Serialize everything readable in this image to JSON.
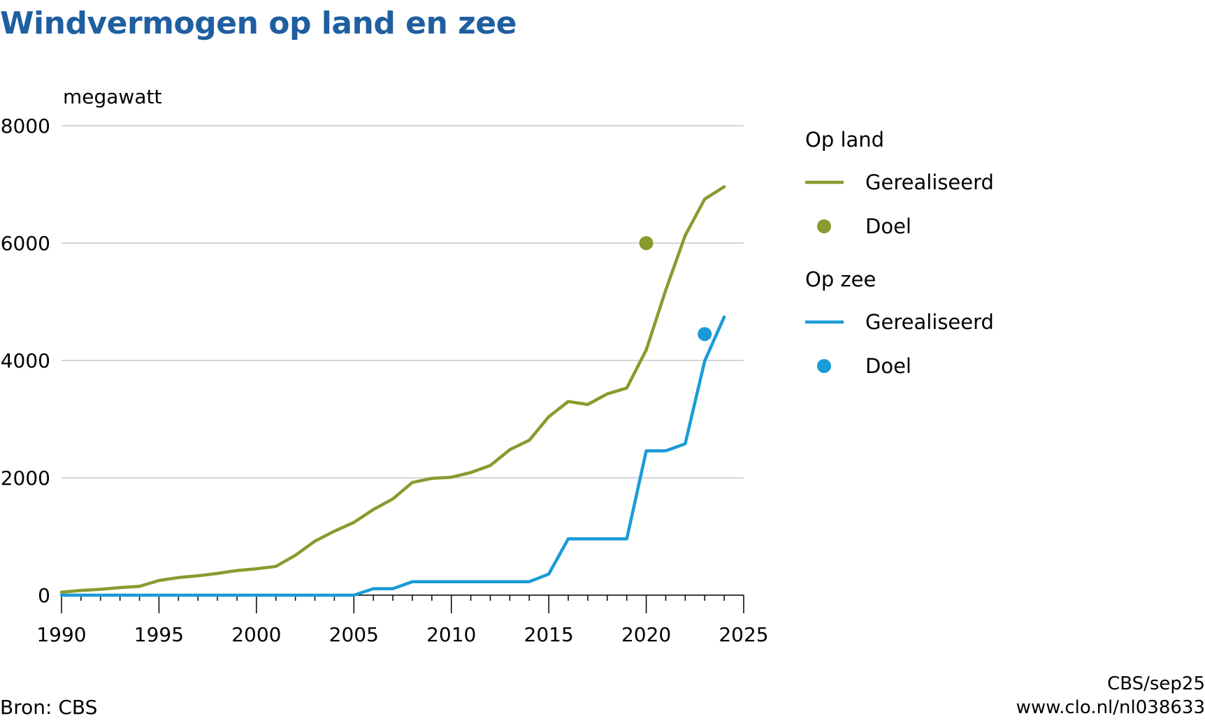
{
  "title": "Windvermogen op land en zee",
  "source": "Bron: CBS",
  "credit": "CBS/sep25",
  "url": "www.clo.nl/nl038633",
  "colors": {
    "land": "#8a9a2e",
    "sea": "#1a9bd7",
    "title": "#1f5fa0",
    "grid": "#c8c8c8"
  },
  "chart_data": {
    "type": "line",
    "ylabel": "megawatt",
    "xlim": [
      1990,
      2025
    ],
    "ylim": [
      0,
      8000
    ],
    "xticks": [
      1990,
      1995,
      2000,
      2005,
      2010,
      2015,
      2020,
      2025
    ],
    "yticks": [
      0,
      2000,
      4000,
      6000,
      8000
    ],
    "grid": true,
    "legend_position": "right",
    "legend": [
      {
        "group": "Op land",
        "items": [
          {
            "label": "Gerealiseerd",
            "kind": "line",
            "color": "#8a9a2e"
          },
          {
            "label": "Doel",
            "kind": "dot",
            "color": "#8a9a2e"
          }
        ]
      },
      {
        "group": "Op zee",
        "items": [
          {
            "label": "Gerealiseerd",
            "kind": "line",
            "color": "#1a9bd7"
          },
          {
            "label": "Doel",
            "kind": "dot",
            "color": "#1a9bd7"
          }
        ]
      }
    ],
    "series": [
      {
        "name": "Op land - Gerealiseerd",
        "color": "#8a9a2e",
        "x": [
          1990,
          1991,
          1992,
          1993,
          1994,
          1995,
          1996,
          1997,
          1998,
          1999,
          2000,
          2001,
          2002,
          2003,
          2004,
          2005,
          2006,
          2007,
          2008,
          2009,
          2010,
          2011,
          2012,
          2013,
          2014,
          2015,
          2016,
          2017,
          2018,
          2019,
          2020,
          2021,
          2022,
          2023,
          2024
        ],
        "y": [
          50,
          80,
          100,
          130,
          150,
          250,
          300,
          330,
          370,
          420,
          450,
          490,
          680,
          920,
          1090,
          1240,
          1460,
          1640,
          1920,
          1990,
          2010,
          2090,
          2210,
          2480,
          2640,
          3040,
          3300,
          3250,
          3430,
          3530,
          4180,
          5200,
          6130,
          6750,
          6960
        ]
      },
      {
        "name": "Op zee - Gerealiseerd",
        "color": "#1a9bd7",
        "x": [
          1990,
          1991,
          1992,
          1993,
          1994,
          1995,
          1996,
          1997,
          1998,
          1999,
          2000,
          2001,
          2002,
          2003,
          2004,
          2005,
          2006,
          2007,
          2008,
          2009,
          2010,
          2011,
          2012,
          2013,
          2014,
          2015,
          2016,
          2017,
          2018,
          2019,
          2020,
          2021,
          2022,
          2023,
          2024
        ],
        "y": [
          0,
          0,
          0,
          0,
          0,
          0,
          0,
          0,
          0,
          0,
          0,
          0,
          0,
          0,
          0,
          0,
          110,
          110,
          230,
          230,
          230,
          230,
          230,
          230,
          230,
          360,
          960,
          960,
          960,
          960,
          2460,
          2460,
          2580,
          3990,
          4740
        ]
      }
    ],
    "targets": [
      {
        "name": "Op land - Doel",
        "x": 2020,
        "y": 6000,
        "color": "#8a9a2e"
      },
      {
        "name": "Op zee - Doel",
        "x": 2023,
        "y": 4450,
        "color": "#1a9bd7"
      }
    ]
  }
}
